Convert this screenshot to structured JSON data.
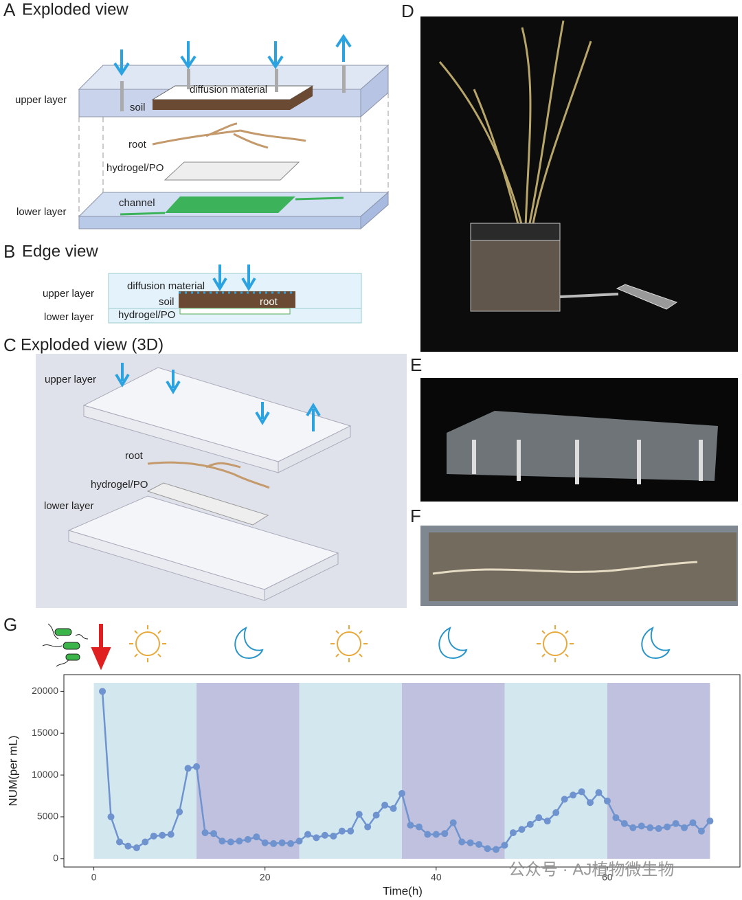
{
  "panels": {
    "A": {
      "label": "A",
      "title": "Exploded view",
      "upper_layer": "upper layer",
      "soil": "soil",
      "diffusion_material": "diffusion material",
      "root": "root",
      "hydrogel": "hydrogel/PO",
      "lower_layer": "lower layer",
      "channel": "channel"
    },
    "B": {
      "label": "B",
      "title": "Edge view",
      "upper_layer": "upper layer",
      "lower_layer": "lower layer",
      "diffusion_material": "diffusion material",
      "soil": "soil",
      "root": "root",
      "hydrogel": "hydrogel/PO"
    },
    "C": {
      "label": "C",
      "title": "Exploded view (3D)",
      "upper_layer": "upper layer",
      "root": "root",
      "hydrogel": "hydrogel/PO",
      "lower_layer": "lower layer"
    },
    "D": {
      "label": "D"
    },
    "E": {
      "label": "E"
    },
    "F": {
      "label": "F"
    },
    "G": {
      "label": "G"
    }
  },
  "watermark": "公众号 · AJ植物微生物",
  "chart_data": {
    "type": "line",
    "x_label": "Time(h)",
    "y_label": "NUM(per mL)",
    "x": [
      1,
      2,
      3,
      4,
      5,
      6,
      7,
      8,
      9,
      10,
      11,
      12,
      13,
      14,
      15,
      16,
      17,
      18,
      19,
      20,
      21,
      22,
      23,
      24,
      25,
      26,
      27,
      28,
      29,
      30,
      31,
      32,
      33,
      34,
      35,
      36,
      37,
      38,
      39,
      40,
      41,
      42,
      43,
      44,
      45,
      46,
      47,
      48,
      49,
      50,
      51,
      52,
      53,
      54,
      55,
      56,
      57,
      58,
      59,
      60,
      61,
      62,
      63,
      64,
      65,
      66,
      67,
      68,
      69,
      70,
      71,
      72
    ],
    "series": [
      {
        "color": "#6f93cf",
        "values": [
          20000,
          5000,
          2000,
          1500,
          1300,
          2000,
          2700,
          2800,
          2900,
          5600,
          10800,
          11000,
          3100,
          3000,
          2100,
          2000,
          2100,
          2300,
          2600,
          1900,
          1800,
          1900,
          1800,
          2100,
          2900,
          2500,
          2800,
          2700,
          3300,
          3300,
          5300,
          3800,
          5200,
          6400,
          6000,
          7800,
          4000,
          3800,
          2900,
          2900,
          3000,
          4300,
          2000,
          1900,
          1700,
          1200,
          1100,
          1600,
          3100,
          3500,
          4100,
          4900,
          4500,
          5500,
          7100,
          7600,
          8000,
          6700,
          7900,
          6900,
          4900,
          4200,
          3700,
          3900,
          3700,
          3600,
          3800,
          4200,
          3700,
          4300,
          3300,
          4500
        ]
      }
    ],
    "periods": [
      {
        "start": 0,
        "end": 12,
        "color": "#d3e7ee"
      },
      {
        "start": 12,
        "end": 24,
        "color": "#bfc1de"
      },
      {
        "start": 24,
        "end": 36,
        "color": "#d3e7ee"
      },
      {
        "start": 36,
        "end": 48,
        "color": "#bfc1de"
      },
      {
        "start": 48,
        "end": 60,
        "color": "#d3e7ee"
      },
      {
        "start": 60,
        "end": 72,
        "color": "#bfc1de"
      }
    ],
    "xlim": [
      -3.5,
      75.5
    ],
    "ylim": [
      -1000,
      22000
    ],
    "xticks": [
      0,
      20,
      40,
      60
    ],
    "yticks": [
      0,
      5000,
      10000,
      15000,
      20000
    ]
  }
}
